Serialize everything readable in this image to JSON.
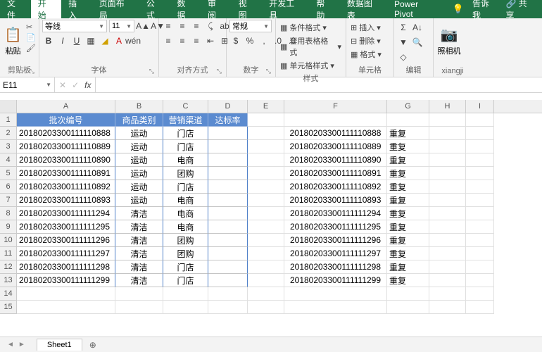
{
  "tabs": {
    "items": [
      "文件",
      "开始",
      "插入",
      "页面布局",
      "公式",
      "数据",
      "审阅",
      "视图",
      "开发工具",
      "帮助",
      "数据图表",
      "Power Pivot"
    ],
    "active_index": 1,
    "tell_me": "告诉我",
    "share": "共享"
  },
  "ribbon": {
    "clipboard": {
      "paste": "粘贴",
      "label": "剪贴板"
    },
    "font": {
      "name": "等线",
      "size": "11",
      "label": "字体"
    },
    "align": {
      "wrap": "",
      "merge": "",
      "label": "对齐方式"
    },
    "number": {
      "format": "常规",
      "label": "数字"
    },
    "styles": {
      "cond": "条件格式",
      "tbl": "套用表格格式",
      "cell": "单元格样式",
      "label": "样式"
    },
    "cells": {
      "ins": "插入",
      "del": "删除",
      "fmt": "格式",
      "label": "单元格"
    },
    "editing": {
      "label": "编辑"
    },
    "camera": {
      "btn": "照相机",
      "label": "xiangji"
    }
  },
  "formula_bar": {
    "name": "E11",
    "fx": "fx"
  },
  "columns": [
    "A",
    "B",
    "C",
    "D",
    "E",
    "F",
    "G",
    "H",
    "I"
  ],
  "col_widths": {
    "A": 140,
    "B": 68,
    "C": 64,
    "D": 56,
    "E": 52,
    "F": 146,
    "G": 60,
    "H": 52,
    "I": 40
  },
  "headers": {
    "A": "批次编号",
    "B": "商品类别",
    "C": "营销渠道",
    "D": "达标率"
  },
  "rows": [
    {
      "A": "20180203300111110888",
      "B": "运动",
      "C": "门店",
      "F": "20180203300111110888",
      "G": "重复"
    },
    {
      "A": "20180203300111110889",
      "B": "运动",
      "C": "门店",
      "F": "20180203300111110889",
      "G": "重复"
    },
    {
      "A": "20180203300111110890",
      "B": "运动",
      "C": "电商",
      "F": "20180203300111110890",
      "G": "重复"
    },
    {
      "A": "20180203300111110891",
      "B": "运动",
      "C": "团购",
      "F": "20180203300111110891",
      "G": "重复"
    },
    {
      "A": "20180203300111110892",
      "B": "运动",
      "C": "门店",
      "F": "20180203300111110892",
      "G": "重复"
    },
    {
      "A": "20180203300111110893",
      "B": "运动",
      "C": "电商",
      "F": "20180203300111110893",
      "G": "重复"
    },
    {
      "A": "20180203300111111294",
      "B": "清洁",
      "C": "电商",
      "F": "20180203300111111294",
      "G": "重复"
    },
    {
      "A": "20180203300111111295",
      "B": "清洁",
      "C": "电商",
      "F": "20180203300111111295",
      "G": "重复"
    },
    {
      "A": "20180203300111111296",
      "B": "清洁",
      "C": "团购",
      "F": "20180203300111111296",
      "G": "重复"
    },
    {
      "A": "20180203300111111297",
      "B": "清洁",
      "C": "团购",
      "F": "20180203300111111297",
      "G": "重复"
    },
    {
      "A": "20180203300111111298",
      "B": "清洁",
      "C": "门店",
      "F": "20180203300111111298",
      "G": "重复"
    },
    {
      "A": "20180203300111111299",
      "B": "清洁",
      "C": "门店",
      "F": "20180203300111111299",
      "G": "重复"
    }
  ],
  "sheet": {
    "name": "Sheet1"
  },
  "colors": {
    "brand": "#217346",
    "header_bg": "#5b8bd0",
    "header_border": "#9ab5de",
    "table_border": "#4f80c8",
    "grid": "#e0e0e0",
    "ribbon_bg": "#f3f3f3"
  }
}
